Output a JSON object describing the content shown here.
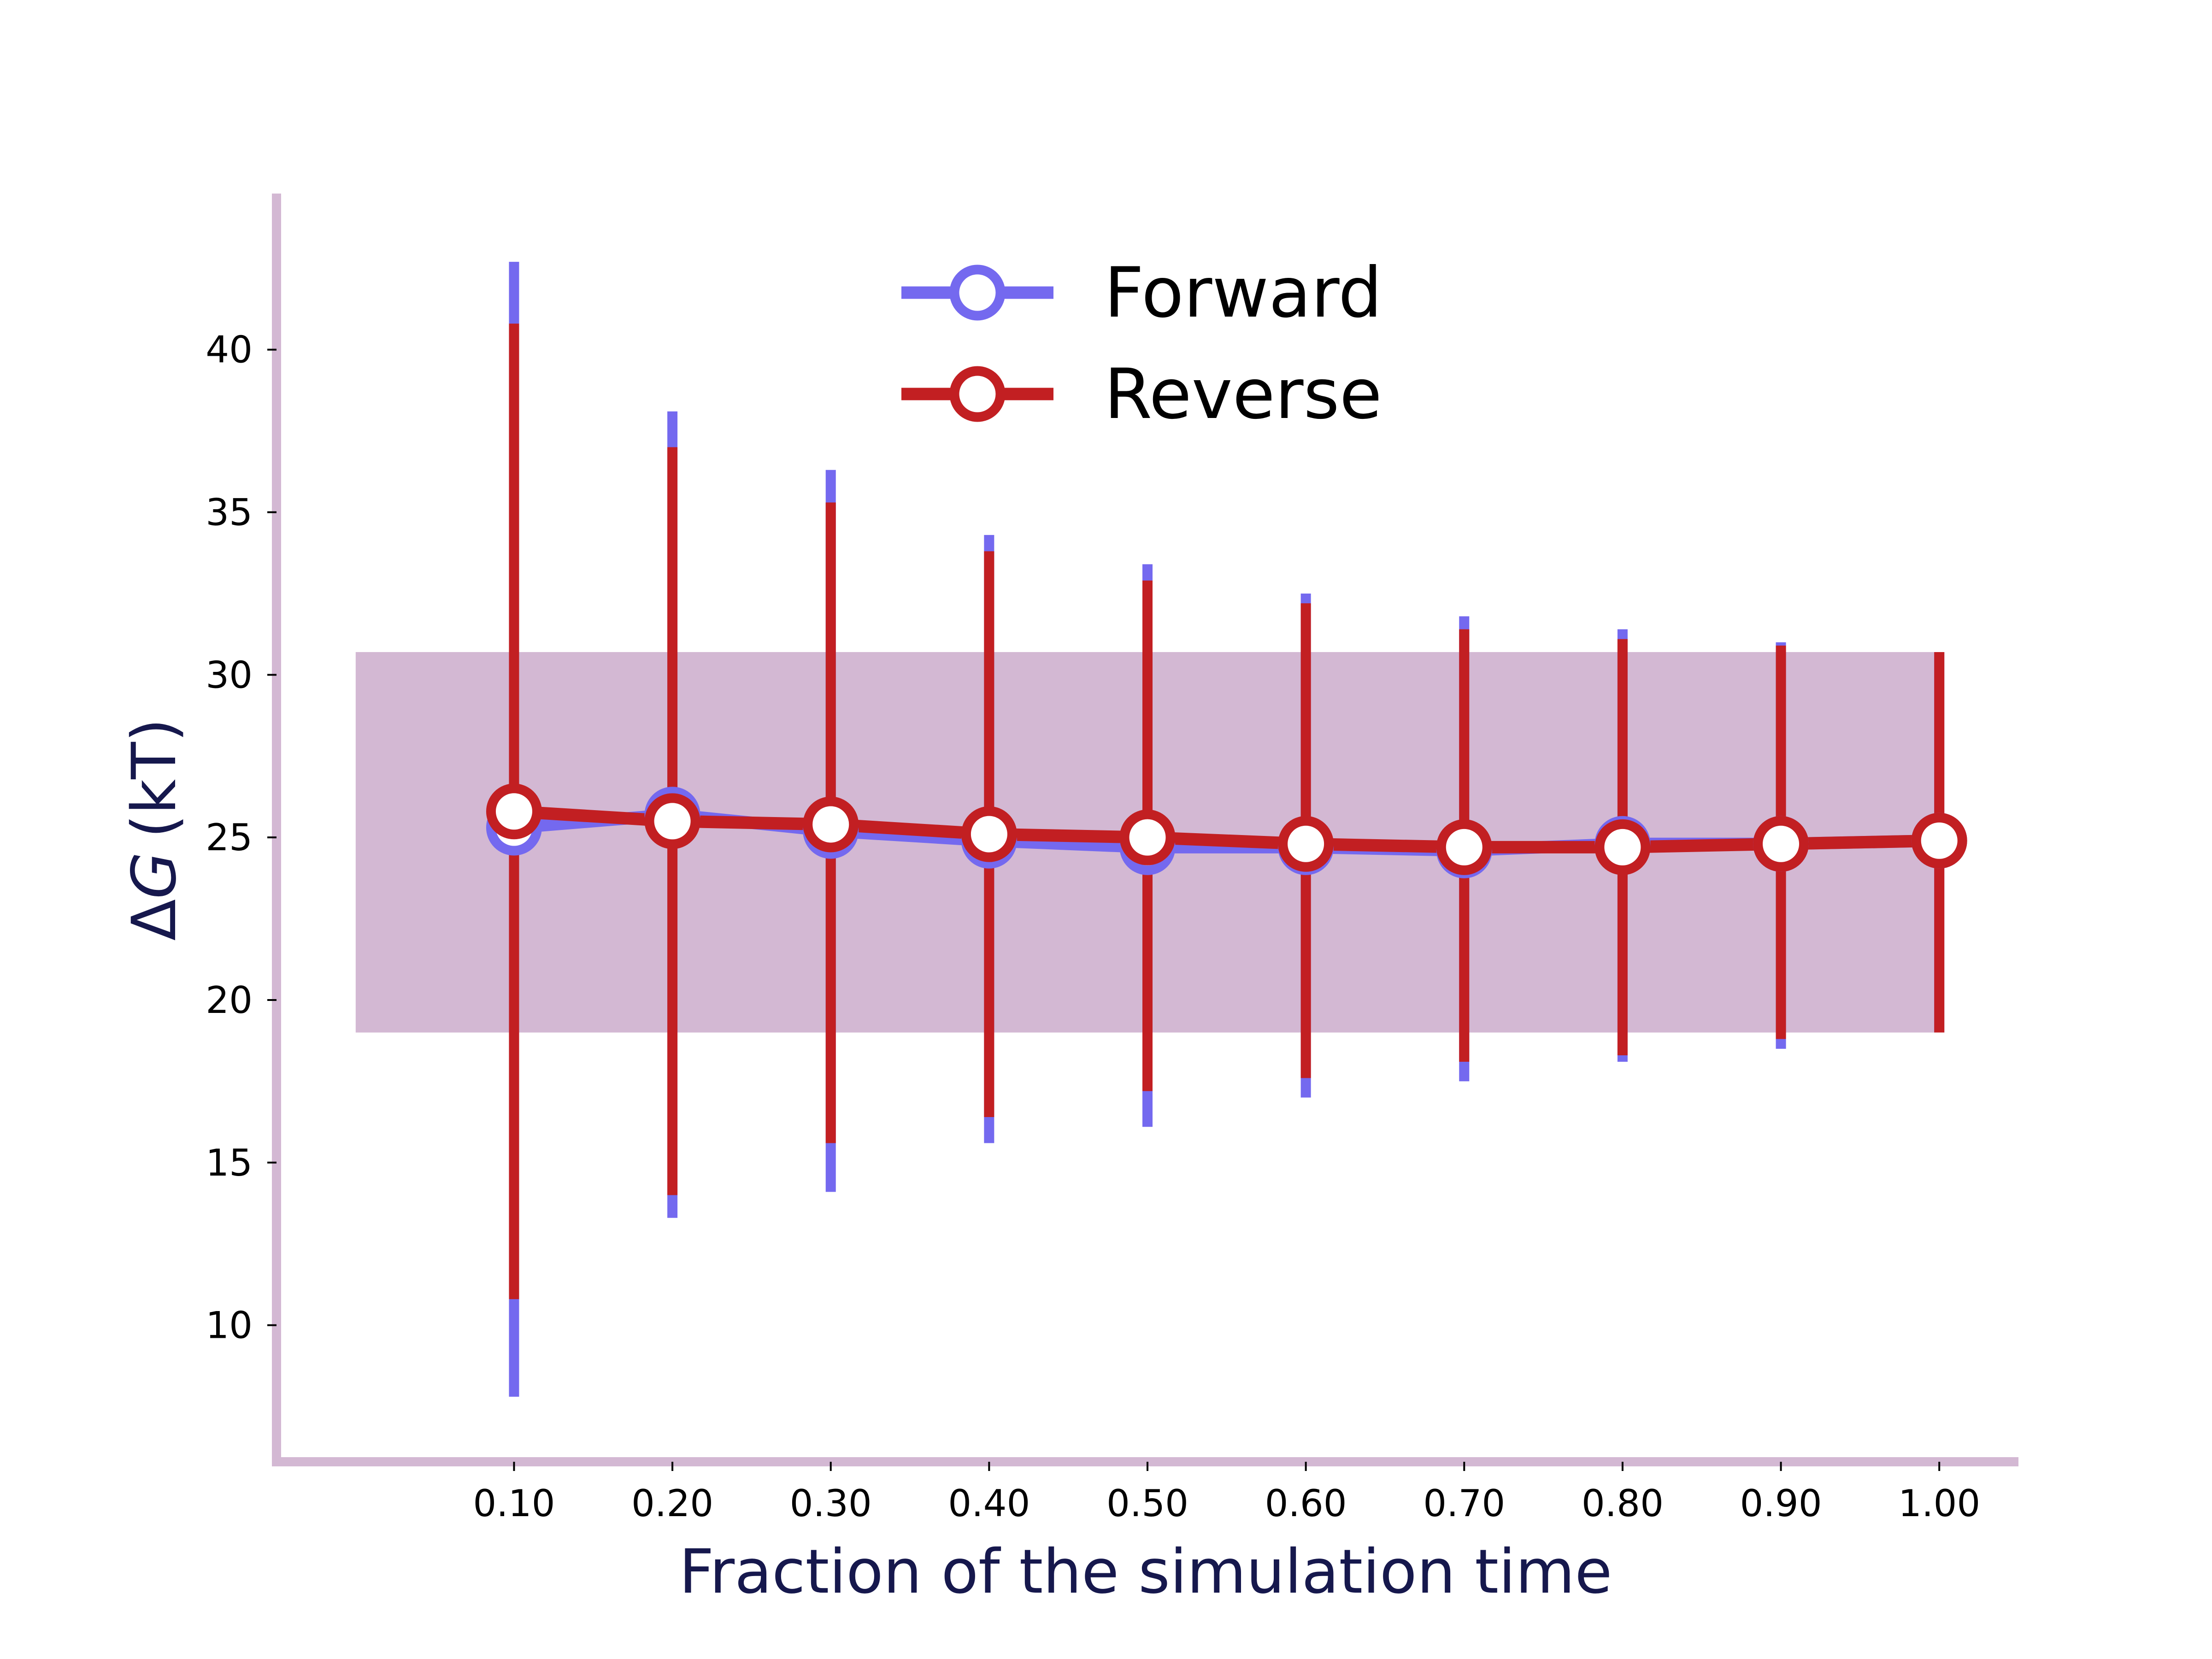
{
  "chart_data": {
    "type": "line",
    "xlabel": "Fraction of the simulation time",
    "ylabel_symbol": "ΔG",
    "ylabel_italic": "G",
    "ylabel_unit": "(kT)",
    "x": [
      0.1,
      0.2,
      0.3,
      0.4,
      0.5,
      0.6,
      0.7,
      0.8,
      0.9,
      1.0
    ],
    "x_tick_labels": [
      "0.10",
      "0.20",
      "0.30",
      "0.40",
      "0.50",
      "0.60",
      "0.70",
      "0.80",
      "0.90",
      "1.00"
    ],
    "y_ticks": [
      10,
      15,
      20,
      25,
      30,
      35,
      40
    ],
    "y_tick_labels": [
      "10",
      "15",
      "20",
      "25",
      "30",
      "35",
      "40"
    ],
    "xlim": [
      -0.05,
      1.05
    ],
    "ylim": [
      5.8,
      44.8
    ],
    "grid": false,
    "legend_position": "top-center",
    "band": {
      "y_low": 19.0,
      "y_high": 30.7,
      "x_start": 0.0,
      "x_end": 1.0,
      "color": "#d3b8d3"
    },
    "axis_color": "#d3b8d3",
    "series": [
      {
        "name": "Forward",
        "color": "#7469ef",
        "y": [
          25.3,
          25.7,
          25.2,
          24.9,
          24.7,
          24.7,
          24.6,
          24.8,
          24.8,
          24.9
        ],
        "err_low": [
          7.8,
          13.3,
          14.1,
          15.6,
          16.1,
          17.0,
          17.5,
          18.1,
          18.5,
          19.0
        ],
        "err_high": [
          42.7,
          38.1,
          36.3,
          34.3,
          33.4,
          32.5,
          31.8,
          31.4,
          31.0,
          30.7
        ]
      },
      {
        "name": "Reverse",
        "color": "#c21f22",
        "y": [
          25.8,
          25.5,
          25.4,
          25.1,
          25.0,
          24.8,
          24.7,
          24.7,
          24.8,
          24.9
        ],
        "err_low": [
          10.8,
          14.0,
          15.6,
          16.4,
          17.2,
          17.6,
          18.1,
          18.3,
          18.8,
          19.0
        ],
        "err_high": [
          40.8,
          37.0,
          35.3,
          33.8,
          32.9,
          32.2,
          31.4,
          31.1,
          30.9,
          30.7
        ]
      }
    ]
  }
}
